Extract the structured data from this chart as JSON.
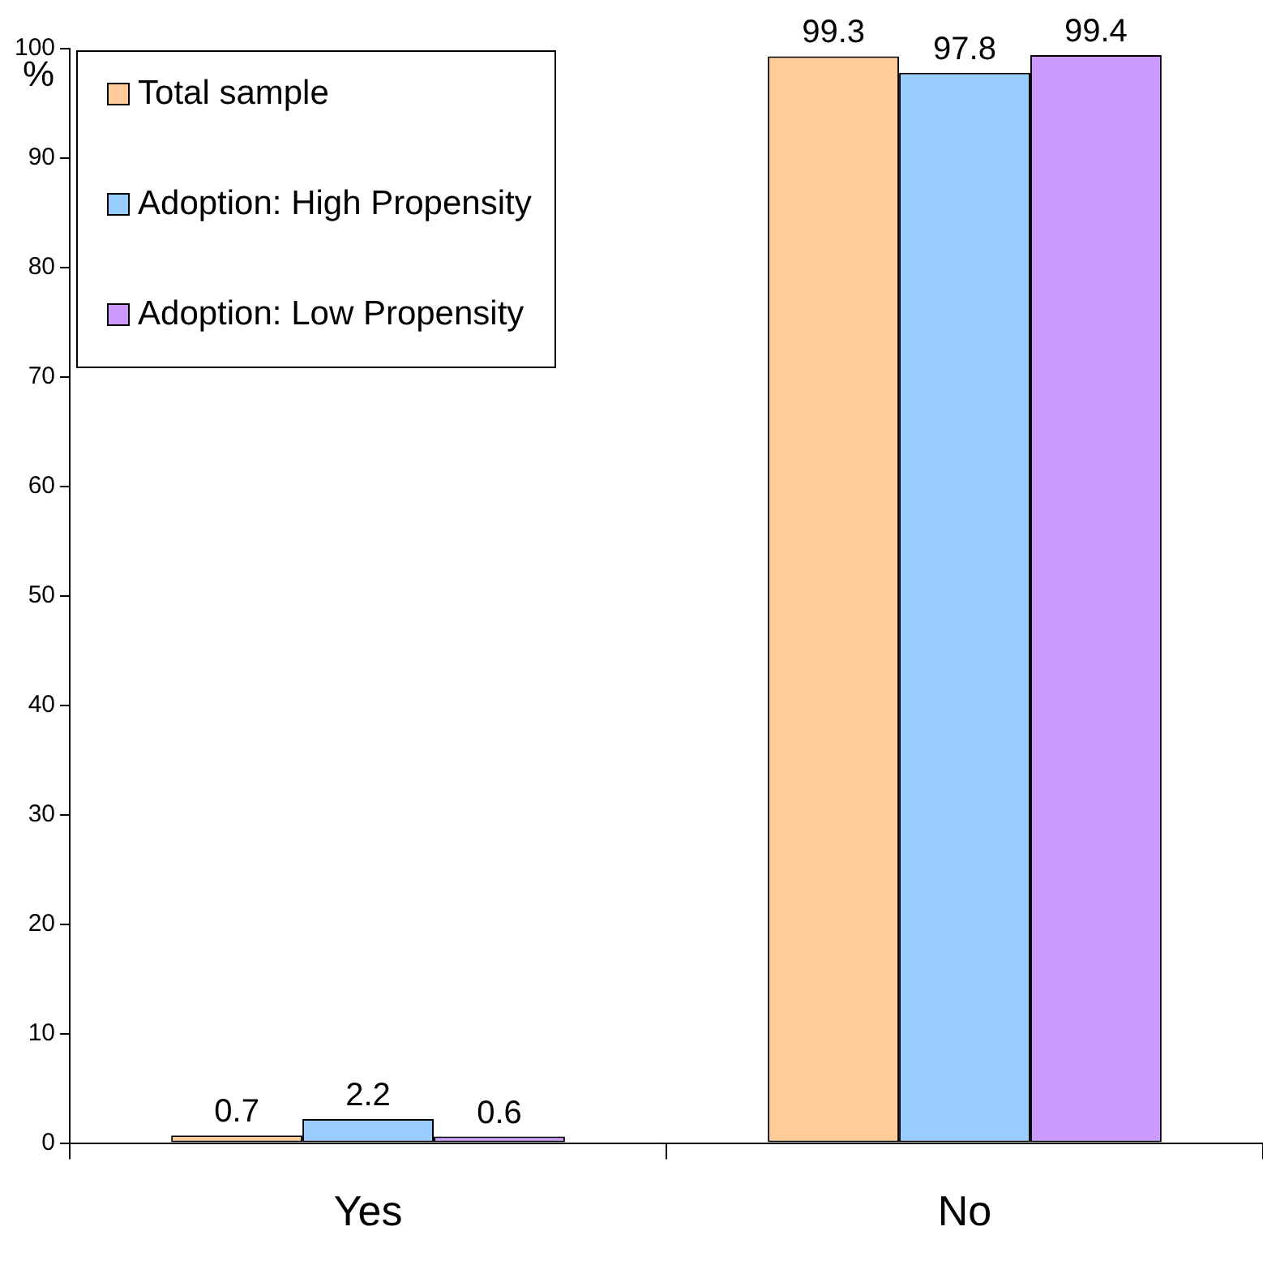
{
  "chart_data": {
    "type": "bar",
    "ylabel": "%",
    "categories": [
      "Yes",
      "No"
    ],
    "series": [
      {
        "name": "Total sample",
        "color": "#ffcc99",
        "values": [
          0.7,
          99.3
        ]
      },
      {
        "name": "Adoption: High Propensity",
        "color": "#99ccff",
        "values": [
          2.2,
          97.8
        ]
      },
      {
        "name": "Adoption: Low Propensity",
        "color": "#cc99ff",
        "values": [
          0.6,
          99.4
        ]
      }
    ],
    "ylim": [
      0,
      100
    ],
    "yticks": [
      0,
      10,
      20,
      30,
      40,
      50,
      60,
      70,
      80,
      90,
      100
    ],
    "grid": false,
    "legend": "top left",
    "data_labels": true
  }
}
